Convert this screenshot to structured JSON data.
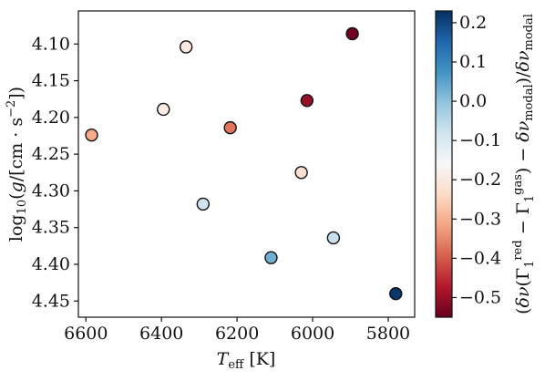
{
  "chart_data": {
    "type": "scatter",
    "xlabel": "T_eff [K]",
    "ylabel": "log10(g/[cm·s^-2])",
    "colorbar_label": "(δν(Γ1^red − Γ1^gas) − δν_modal)/δν_modal",
    "colormap": "RdBu",
    "xlim": [
      6620,
      5730
    ],
    "ylim": [
      4.472,
      4.055
    ],
    "clim": [
      -0.55,
      0.23
    ],
    "x_ticks": [
      6600,
      6400,
      6200,
      6000,
      5800
    ],
    "y_ticks": [
      4.1,
      4.15,
      4.2,
      4.25,
      4.3,
      4.35,
      4.4,
      4.45
    ],
    "c_ticks": [
      0.2,
      0.1,
      0.0,
      -0.1,
      -0.2,
      -0.3,
      -0.4,
      -0.5
    ],
    "x_tick_labels": [
      "6600",
      "6400",
      "6200",
      "6000",
      "5800"
    ],
    "y_tick_labels": [
      "4.10",
      "4.15",
      "4.20",
      "4.25",
      "4.30",
      "4.35",
      "4.40",
      "4.45"
    ],
    "c_tick_labels": [
      "0.2",
      "0.1",
      "0.0",
      "−0.1",
      "−0.2",
      "−0.3",
      "−0.4",
      "−0.5"
    ],
    "points": [
      {
        "x": 6585,
        "y": 4.224,
        "c": -0.31
      },
      {
        "x": 6335,
        "y": 4.104,
        "c": -0.2
      },
      {
        "x": 6395,
        "y": 4.189,
        "c": -0.19
      },
      {
        "x": 6218,
        "y": 4.214,
        "c": -0.37
      },
      {
        "x": 6290,
        "y": 4.318,
        "c": -0.08
      },
      {
        "x": 6110,
        "y": 4.391,
        "c": 0.03
      },
      {
        "x": 6030,
        "y": 4.275,
        "c": -0.22
      },
      {
        "x": 6015,
        "y": 4.177,
        "c": -0.5
      },
      {
        "x": 5945,
        "y": 4.364,
        "c": -0.07
      },
      {
        "x": 5895,
        "y": 4.086,
        "c": -0.54
      },
      {
        "x": 5780,
        "y": 4.44,
        "c": 0.22
      }
    ]
  }
}
